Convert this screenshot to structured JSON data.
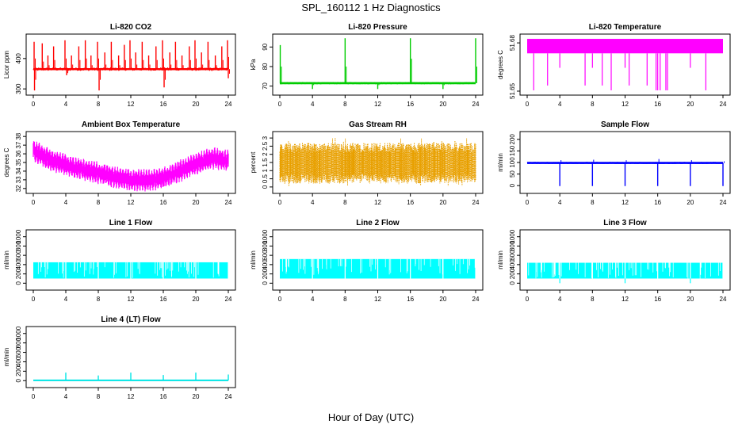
{
  "figure": {
    "title": "SPL_160112  1 Hz Diagnostics",
    "xlabel": "Hour of Day (UTC)"
  },
  "chart_data": [
    {
      "type": "line",
      "title": "Li-820 CO2",
      "ylabel": "Licor ppm",
      "color": "#ff0000",
      "xlim": [
        0,
        24
      ],
      "ylim": [
        290,
        470
      ],
      "xticks": [
        0,
        4,
        8,
        12,
        16,
        20,
        24
      ],
      "yticks": [
        300,
        400
      ],
      "series": [
        {
          "baseline": 365,
          "band": [
            352,
            378
          ],
          "noise": 5,
          "spikes": [
            [
              0.1,
              455,
              400
            ],
            [
              0.15,
              295,
              330
            ],
            [
              1.1,
              450,
              390
            ],
            [
              1.8,
              410,
              378
            ],
            [
              2.5,
              440,
              395
            ],
            [
              3.9,
              460,
              400
            ],
            [
              4.1,
              345,
              352
            ],
            [
              4.7,
              410,
              380
            ],
            [
              5.6,
              440,
              395
            ],
            [
              6.4,
              460,
              400
            ],
            [
              7.1,
              410,
              378
            ],
            [
              7.9,
              455,
              400
            ],
            [
              8.1,
              295,
              330
            ],
            [
              8.8,
              420,
              380
            ],
            [
              9.6,
              455,
              395
            ],
            [
              10.5,
              410,
              378
            ],
            [
              11.2,
              445,
              395
            ],
            [
              11.9,
              460,
              400
            ],
            [
              12.6,
              420,
              380
            ],
            [
              13.4,
              455,
              395
            ],
            [
              14.2,
              410,
              380
            ],
            [
              15.1,
              440,
              395
            ],
            [
              15.9,
              460,
              400
            ],
            [
              16.1,
              305,
              330
            ],
            [
              16.8,
              420,
              380
            ],
            [
              17.5,
              455,
              395
            ],
            [
              18.3,
              410,
              378
            ],
            [
              19.2,
              440,
              395
            ],
            [
              19.9,
              460,
              400
            ],
            [
              20.7,
              420,
              380
            ],
            [
              21.5,
              455,
              395
            ],
            [
              22.4,
              410,
              378
            ],
            [
              23.2,
              440,
              395
            ],
            [
              23.9,
              460,
              405
            ],
            [
              24.0,
              335,
              350
            ]
          ]
        }
      ]
    },
    {
      "type": "line",
      "title": "Li-820 Pressure",
      "ylabel": "kPa",
      "color": "#00cc00",
      "xlim": [
        0,
        24
      ],
      "ylim": [
        67,
        95
      ],
      "xticks": [
        0,
        4,
        8,
        12,
        16,
        20,
        24
      ],
      "yticks": [
        70,
        80,
        90
      ],
      "series": [
        {
          "baseline": 71.5,
          "band": [
            71,
            72
          ],
          "noise": 0.3,
          "spikes": [
            [
              0.05,
              91,
              80
            ],
            [
              4.0,
              68.5,
              70.5
            ],
            [
              8.0,
              94.5,
              80
            ],
            [
              12.0,
              68.5,
              70.5
            ],
            [
              16.0,
              94.5,
              84
            ],
            [
              20.0,
              68.5,
              70.5
            ],
            [
              24.0,
              94.5,
              80
            ]
          ]
        }
      ]
    },
    {
      "type": "line",
      "title": "Li-820 Temperature",
      "ylabel": "degrees C",
      "color": "#ff00ff",
      "xlim": [
        0,
        24
      ],
      "ylim": [
        51.6495,
        51.6835
      ],
      "xticks": [
        0,
        4,
        8,
        12,
        16,
        20,
        24
      ],
      "yticks": [
        51.65,
        51.68
      ],
      "series": [
        {
          "band": [
            51.6735,
            51.6825
          ],
          "spikes": [
            [
              0.8,
              51.6505
            ],
            [
              2.5,
              51.6535
            ],
            [
              4.0,
              51.6645
            ],
            [
              7.1,
              51.6535
            ],
            [
              8.0,
              51.6645
            ],
            [
              9.2,
              51.6535
            ],
            [
              10.3,
              51.6505
            ],
            [
              12.0,
              51.6645
            ],
            [
              12.5,
              51.6535
            ],
            [
              14.7,
              51.6535
            ],
            [
              15.8,
              51.6505
            ],
            [
              16.0,
              51.6505
            ],
            [
              16.3,
              51.6505
            ],
            [
              17.0,
              51.6505
            ],
            [
              17.2,
              51.6505
            ],
            [
              20.0,
              51.6645
            ],
            [
              21.9,
              51.6505
            ]
          ]
        }
      ]
    },
    {
      "type": "line",
      "title": "Ambient Box Temperature",
      "ylabel": "degrees C",
      "color": "#ff00ff",
      "xlim": [
        0,
        24
      ],
      "ylim": [
        31.8,
        38.2
      ],
      "xticks": [
        0,
        4,
        8,
        12,
        16,
        20,
        24
      ],
      "yticks": [
        32,
        33,
        34,
        35,
        36,
        37,
        38
      ],
      "series": [
        {
          "center": [
            [
              0,
              36.4
            ],
            [
              2,
              35.3
            ],
            [
              4,
              34.7
            ],
            [
              6,
              34.2
            ],
            [
              8,
              33.8
            ],
            [
              10,
              33.3
            ],
            [
              12,
              33.0
            ],
            [
              14,
              32.9
            ],
            [
              16,
              33.2
            ],
            [
              18,
              34.0
            ],
            [
              20,
              34.8
            ],
            [
              22,
              35.5
            ],
            [
              24,
              35.2
            ]
          ],
          "halfwidth": 0.9
        }
      ]
    },
    {
      "type": "line",
      "title": "Gas Stream RH",
      "ylabel": "percent",
      "color": "#e8a000",
      "xlim": [
        0,
        24
      ],
      "ylim": [
        -0.2,
        3.2
      ],
      "xticks": [
        0,
        4,
        8,
        12,
        16,
        20,
        24
      ],
      "yticks": [
        0.0,
        0.5,
        1.0,
        1.5,
        2.0,
        2.5,
        3.0
      ],
      "series": [
        {
          "band": [
            0.2,
            2.7
          ],
          "extremes": [
            0.0,
            3.0
          ]
        }
      ]
    },
    {
      "type": "line",
      "title": "Sample Flow",
      "ylabel": "ml/min",
      "color": "#0000ff",
      "xlim": [
        0,
        24
      ],
      "ylim": [
        -20,
        220
      ],
      "xticks": [
        0,
        4,
        8,
        12,
        16,
        20,
        24
      ],
      "yticks": [
        0,
        50,
        100,
        150,
        200
      ],
      "series": [
        {
          "baseline": 98,
          "band": [
            95,
            102
          ],
          "noise": 2,
          "spikes": [
            [
              4.0,
              -2,
              110
            ],
            [
              8.0,
              -2,
              112
            ],
            [
              12.0,
              -2,
              110
            ],
            [
              16.0,
              -2,
              115
            ],
            [
              20.0,
              -2,
              110
            ],
            [
              24.0,
              -2,
              105
            ]
          ]
        }
      ]
    },
    {
      "type": "area",
      "title": "Line 1 Flow",
      "ylabel": "ml/min",
      "color": "#00ffff",
      "xlim": [
        0,
        24
      ],
      "ylim": [
        -80,
        1080
      ],
      "xticks": [
        0,
        4,
        8,
        12,
        16,
        20,
        24
      ],
      "yticks": [
        0,
        200,
        400,
        600,
        800,
        1000
      ],
      "series": [
        {
          "band": [
            100,
            450
          ],
          "gaps": [
            4,
            8,
            12,
            16,
            20,
            24
          ]
        }
      ]
    },
    {
      "type": "area",
      "title": "Line 2 Flow",
      "ylabel": "ml/min",
      "color": "#00ffff",
      "xlim": [
        0,
        24
      ],
      "ylim": [
        -80,
        1080
      ],
      "xticks": [
        0,
        4,
        8,
        12,
        16,
        20,
        24
      ],
      "yticks": [
        0,
        200,
        400,
        600,
        800,
        1000
      ],
      "series": [
        {
          "band": [
            100,
            520
          ],
          "gaps": [
            4,
            8,
            12,
            16,
            20,
            24
          ]
        }
      ]
    },
    {
      "type": "area",
      "title": "Line 3 Flow",
      "ylabel": "ml/min",
      "color": "#00ffff",
      "xlim": [
        0,
        24
      ],
      "ylim": [
        -80,
        1080
      ],
      "xticks": [
        0,
        4,
        8,
        12,
        16,
        20,
        24
      ],
      "yticks": [
        0,
        200,
        400,
        600,
        800,
        1000
      ],
      "series": [
        {
          "band": [
            100,
            440
          ],
          "gaps": [
            4,
            8,
            12,
            16,
            20,
            24
          ],
          "dips": [
            4,
            12,
            20
          ]
        }
      ]
    },
    {
      "type": "line",
      "title": "Line 4 (LT) Flow",
      "ylabel": "ml/min",
      "color": "#00e5e5",
      "xlim": [
        0,
        24
      ],
      "ylim": [
        -80,
        1080
      ],
      "xticks": [
        0,
        4,
        8,
        12,
        16,
        20,
        24
      ],
      "yticks": [
        0,
        200,
        400,
        600,
        800,
        1000
      ],
      "series": [
        {
          "baseline": 5,
          "spikes": [
            [
              4,
              170
            ],
            [
              8,
              110
            ],
            [
              12,
              170
            ],
            [
              16,
              120
            ],
            [
              20,
              170
            ],
            [
              24,
              130
            ]
          ]
        }
      ]
    }
  ]
}
